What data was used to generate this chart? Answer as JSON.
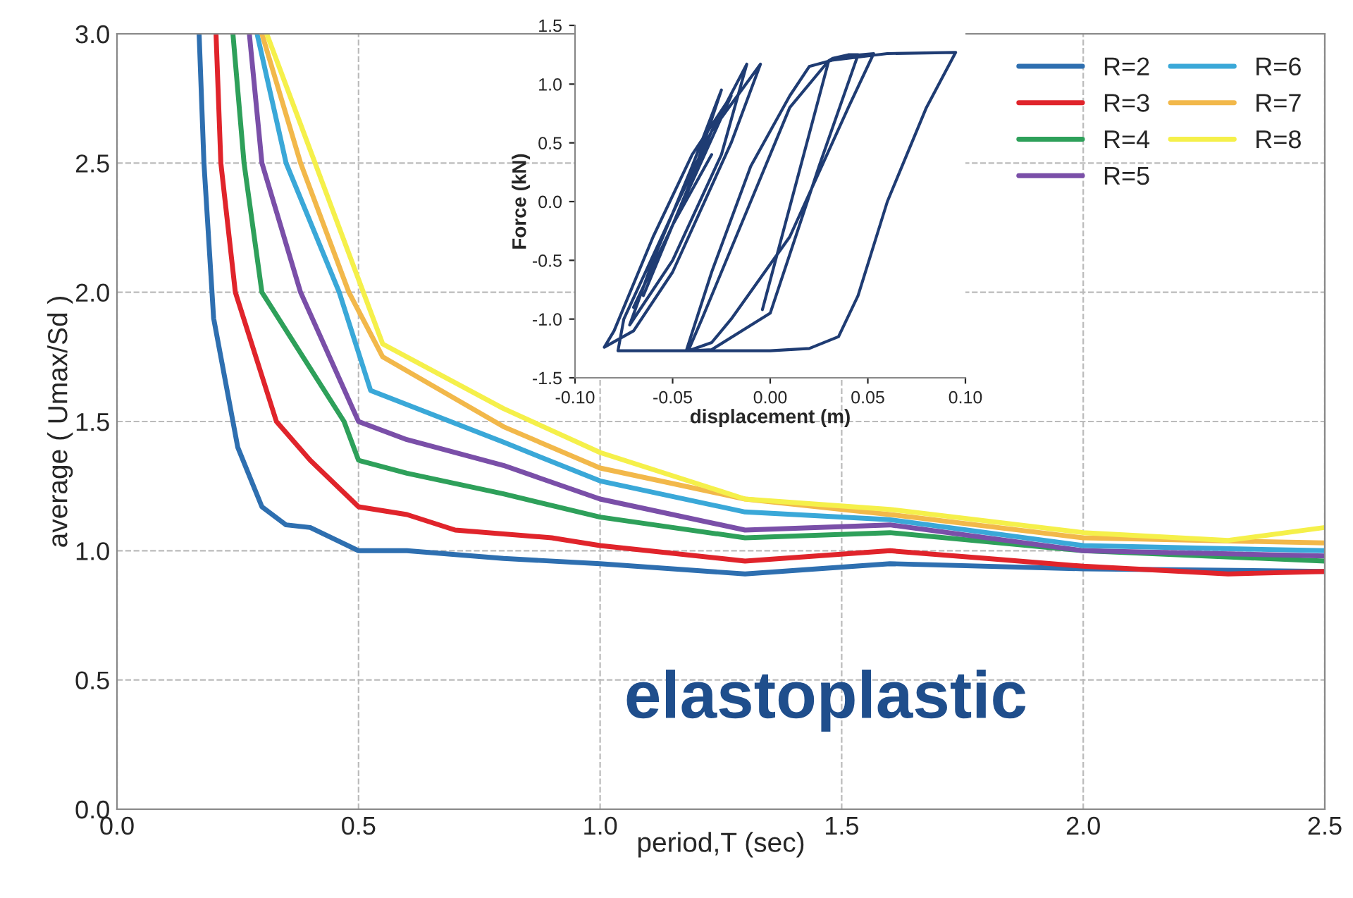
{
  "chart_data": [
    {
      "type": "line",
      "xlabel": "period,T (sec)",
      "ylabel": "average ( Umax/Sd )",
      "annotations": [
        "elastoplastic"
      ],
      "xlim": [
        0.0,
        2.5
      ],
      "ylim": [
        0.0,
        3.0
      ],
      "xticks": [
        {
          "value": 0.0,
          "label": "0.0"
        },
        {
          "value": 0.5,
          "label": "0.5"
        },
        {
          "value": 1.0,
          "label": "1.0"
        },
        {
          "value": 1.5,
          "label": "1.5"
        },
        {
          "value": 2.0,
          "label": "2.0"
        },
        {
          "value": 2.5,
          "label": "2.5"
        }
      ],
      "yticks": [
        {
          "value": 0.0,
          "label": "0.0"
        },
        {
          "value": 0.5,
          "label": "0.5"
        },
        {
          "value": 1.0,
          "label": "1.0"
        },
        {
          "value": 1.5,
          "label": "1.5"
        },
        {
          "value": 2.0,
          "label": "2.0"
        },
        {
          "value": 2.5,
          "label": "2.5"
        },
        {
          "value": 3.0,
          "label": "3.0"
        }
      ],
      "grid": true,
      "legend": "top right",
      "line_style": "solid",
      "series": [
        {
          "name": "R=2",
          "color": "#2e6fb0",
          "x": [
            0.17,
            0.18,
            0.2,
            0.25,
            0.3,
            0.35,
            0.4,
            0.5,
            0.6,
            0.8,
            1.0,
            1.3,
            1.6,
            2.0,
            2.5
          ],
          "values": [
            3.0,
            2.5,
            1.9,
            1.4,
            1.17,
            1.1,
            1.09,
            1.0,
            1.0,
            0.97,
            0.95,
            0.91,
            0.95,
            0.93,
            0.92
          ]
        },
        {
          "name": "R=3",
          "color": "#e0242b",
          "x": [
            0.205,
            0.215,
            0.245,
            0.33,
            0.4,
            0.5,
            0.6,
            0.7,
            0.9,
            1.0,
            1.3,
            1.6,
            1.8,
            2.0,
            2.3,
            2.5
          ],
          "values": [
            3.0,
            2.5,
            2.0,
            1.5,
            1.35,
            1.17,
            1.14,
            1.08,
            1.05,
            1.02,
            0.96,
            1.0,
            0.97,
            0.94,
            0.91,
            0.92
          ]
        },
        {
          "name": "R=4",
          "color": "#2ea05a",
          "x": [
            0.24,
            0.263,
            0.3,
            0.47,
            0.5,
            0.6,
            0.8,
            1.0,
            1.3,
            1.6,
            2.0,
            2.5
          ],
          "values": [
            3.0,
            2.5,
            2.0,
            1.5,
            1.35,
            1.3,
            1.22,
            1.13,
            1.05,
            1.07,
            1.0,
            0.96
          ]
        },
        {
          "name": "R=5",
          "color": "#7a4fa8",
          "x": [
            0.274,
            0.3,
            0.38,
            0.5,
            0.6,
            0.8,
            1.0,
            1.3,
            1.6,
            2.0,
            2.5
          ],
          "values": [
            3.0,
            2.5,
            2.0,
            1.5,
            1.43,
            1.33,
            1.2,
            1.08,
            1.1,
            1.0,
            0.98
          ]
        },
        {
          "name": "R=6",
          "color": "#3aa8d8",
          "x": [
            0.29,
            0.35,
            0.46,
            0.525,
            0.8,
            1.0,
            1.3,
            1.6,
            2.0,
            2.5
          ],
          "values": [
            3.0,
            2.5,
            2.0,
            1.62,
            1.42,
            1.27,
            1.15,
            1.12,
            1.02,
            1.0
          ]
        },
        {
          "name": "R=7",
          "color": "#f2b84a",
          "x": [
            0.3,
            0.38,
            0.48,
            0.55,
            0.8,
            1.0,
            1.3,
            1.6,
            2.0,
            2.5
          ],
          "values": [
            3.0,
            2.5,
            2.0,
            1.75,
            1.48,
            1.32,
            1.2,
            1.14,
            1.05,
            1.03
          ]
        },
        {
          "name": "R=8",
          "color": "#f5f04a",
          "x": [
            0.31,
            0.41,
            0.51,
            0.55,
            0.8,
            1.0,
            1.3,
            1.6,
            2.0,
            2.3,
            2.5
          ],
          "values": [
            3.0,
            2.5,
            2.0,
            1.8,
            1.55,
            1.38,
            1.2,
            1.16,
            1.07,
            1.04,
            1.09
          ]
        }
      ]
    },
    {
      "type": "line",
      "xlabel": "displacement (m)",
      "ylabel": "Force (kN)",
      "xlim": [
        -0.1,
        0.1
      ],
      "ylim": [
        -1.5,
        1.5
      ],
      "xticks": [
        {
          "value": -0.1,
          "label": "-0.10"
        },
        {
          "value": -0.05,
          "label": "-0.05"
        },
        {
          "value": 0.0,
          "label": "0.00"
        },
        {
          "value": 0.05,
          "label": "0.05"
        },
        {
          "value": 0.1,
          "label": "0.10"
        }
      ],
      "yticks": [
        {
          "value": -1.5,
          "label": "-1.5"
        },
        {
          "value": -1.0,
          "label": "-1.0"
        },
        {
          "value": -0.5,
          "label": "-0.5"
        },
        {
          "value": 0.0,
          "label": "0.0"
        },
        {
          "value": 0.5,
          "label": "0.5"
        },
        {
          "value": 1.0,
          "label": "1.0"
        },
        {
          "value": 1.5,
          "label": "1.5"
        }
      ],
      "grid": false,
      "legend": false,
      "line_style": "solid",
      "series": [
        {
          "color": "#1f3c73",
          "x": [
            -0.004,
            0.03,
            0.032,
            0.04,
            0.045,
            0.025,
            0.0,
            -0.03,
            -0.04,
            -0.043,
            -0.03,
            -0.01,
            0.01,
            0.02,
            0.04,
            0.053,
            0.04,
            0.01,
            -0.02,
            -0.03,
            -0.042,
            -0.035,
            -0.01,
            0.01,
            0.03,
            0.06,
            0.095,
            0.08,
            0.06,
            0.045,
            0.035,
            0.02,
            0.0,
            -0.043,
            -0.078,
            -0.075,
            -0.05,
            -0.03,
            -0.012,
            -0.025,
            -0.05,
            -0.072,
            -0.06,
            -0.04,
            -0.025,
            -0.04,
            -0.065,
            -0.045,
            -0.03,
            -0.005,
            -0.02,
            -0.05,
            -0.07,
            -0.085,
            -0.08,
            -0.06,
            -0.04,
            -0.02,
            -0.05,
            -0.07,
            -0.05,
            -0.03
          ],
          "values": [
            -0.92,
            1.2,
            1.22,
            1.25,
            1.25,
            0.3,
            -0.95,
            -1.26,
            -1.27,
            -1.27,
            -0.6,
            0.3,
            0.9,
            1.15,
            1.24,
            1.26,
            0.8,
            -0.3,
            -1.0,
            -1.2,
            -1.27,
            -1.0,
            0.0,
            0.8,
            1.2,
            1.26,
            1.27,
            0.8,
            0.0,
            -0.8,
            -1.15,
            -1.25,
            -1.27,
            -1.27,
            -1.27,
            -1.0,
            -0.1,
            0.6,
            1.17,
            0.4,
            -0.5,
            -1.05,
            -0.5,
            0.3,
            0.95,
            0.2,
            -0.8,
            0.0,
            0.6,
            1.17,
            0.5,
            -0.6,
            -1.1,
            -1.24,
            -1.1,
            -0.3,
            0.4,
            0.9,
            -0.2,
            -0.9,
            -0.2,
            0.4
          ]
        }
      ]
    }
  ]
}
